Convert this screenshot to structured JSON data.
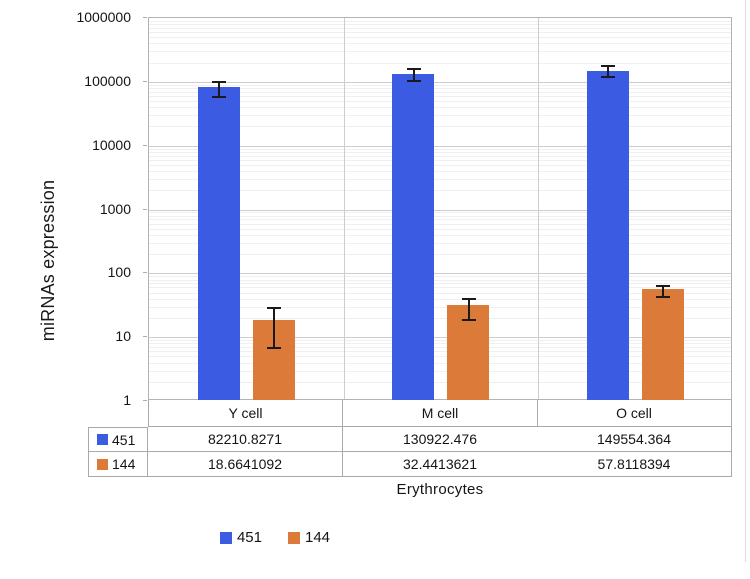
{
  "colors": {
    "series_451": "#3a5be2",
    "series_144": "#dc7a3a",
    "error_bar": "#1a1a1a",
    "gridline_major": "#cdcdcd",
    "gridline_minor": "#f0f0f0",
    "plot_border": "#b3b3b3",
    "table_border": "#a9a9a9"
  },
  "y_axis": {
    "title": "miRNAs expression",
    "tick_labels": [
      "1000000",
      "100000",
      "10000",
      "1000",
      "100",
      "10",
      "1"
    ],
    "scale": "log",
    "min": 1,
    "max": 1000000
  },
  "x_axis": {
    "title": "Erythrocytes"
  },
  "legend": {
    "items": [
      {
        "label": "451",
        "color": "#3a5be2"
      },
      {
        "label": "144",
        "color": "#dc7a3a"
      }
    ]
  },
  "data_table": {
    "category_headers": [
      "Y cell",
      "M cell",
      "O cell"
    ],
    "rows": [
      {
        "label": "451",
        "swatch_color": "#3a5be2",
        "values": [
          "82210.8271",
          "130922.476",
          "149554.364"
        ]
      },
      {
        "label": "144",
        "swatch_color": "#dc7a3a",
        "values": [
          "18.6641092",
          "32.4413621",
          "57.8118394"
        ]
      }
    ]
  },
  "chart_data": {
    "type": "bar",
    "title": "",
    "xlabel": "Erythrocytes",
    "ylabel": "miRNAs expression",
    "yscale": "log",
    "ylim": [
      1,
      1000000
    ],
    "grid": true,
    "legend_position": "bottom",
    "categories": [
      "Y cell",
      "M cell",
      "O cell"
    ],
    "series": [
      {
        "name": "451",
        "color": "#3a5be2",
        "values": [
          82210.8271,
          130922.476,
          149554.364
        ],
        "display_values": [
          "82210.8271",
          "130922.476",
          "149554.364"
        ],
        "error_whisker_low": [
          60000,
          105000,
          122000
        ],
        "error_whisker_high": [
          103000,
          163000,
          181000
        ]
      },
      {
        "name": "144",
        "color": "#dc7a3a",
        "values": [
          18.6641092,
          32.4413621,
          57.8118394
        ],
        "display_values": [
          "18.6641092",
          "32.4413621",
          "57.8118394"
        ],
        "error_whisker_low": [
          7,
          19.5,
          44
        ],
        "error_whisker_high": [
          30,
          41,
          66
        ]
      }
    ]
  }
}
